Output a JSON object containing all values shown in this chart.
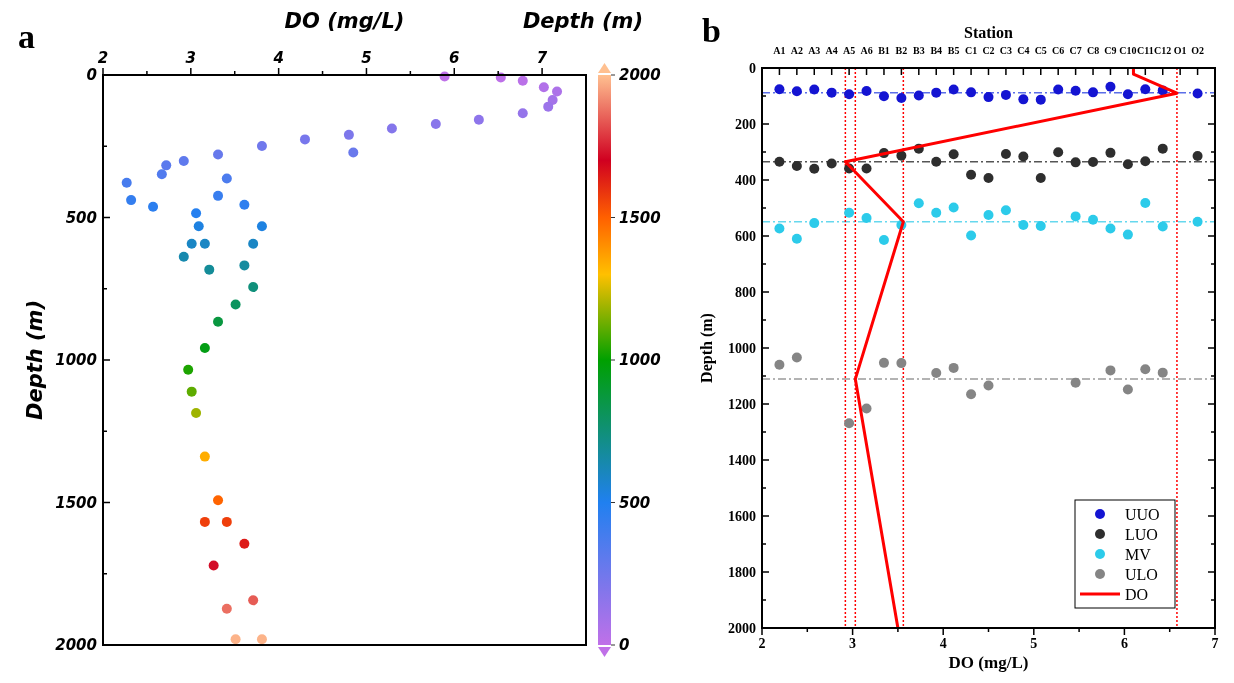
{
  "chart_data": [
    {
      "type": "scatter",
      "xlabel": "DO (mg/L)",
      "ylabel": "Depth (m)",
      "clabel": "Depth (m)",
      "annotations": [
        "a"
      ],
      "marker": "circle",
      "legend": false,
      "grid": false,
      "xlim": [
        2,
        7.5
      ],
      "xticks": [
        2,
        {
          "value": 2.5,
          "label": null
        },
        3,
        {
          "value": 3.5,
          "label": null
        },
        4,
        {
          "value": 4.5,
          "label": null
        },
        5,
        {
          "value": 5.5,
          "label": null
        },
        6,
        {
          "value": 6.5,
          "label": null
        },
        7
      ],
      "ylim": [
        2000,
        0
      ],
      "yticks": [
        0,
        {
          "value": 250,
          "label": null
        },
        500,
        {
          "value": 750,
          "label": null
        },
        1000,
        {
          "value": 1250,
          "label": null
        },
        1500,
        {
          "value": 1750,
          "label": null
        },
        2000
      ],
      "clim": [
        0,
        2000
      ],
      "cticks": [
        0,
        500,
        1000,
        1500,
        2000
      ],
      "series": [
        {
          "x": [
            5.89,
            6.53,
            6.78,
            7.02,
            7.17,
            7.12,
            7.07,
            6.78,
            6.28,
            5.79,
            5.29,
            4.8,
            4.3,
            3.81,
            3.31,
            2.92,
            2.72,
            2.67,
            2.27,
            2.32,
            2.57,
            3.06,
            3.31,
            3.41,
            3.61,
            3.81,
            3.71,
            3.61,
            3.71,
            3.51,
            3.31,
            3.16,
            2.97,
            3.01,
            3.06,
            3.16,
            3.31,
            3.41,
            3.16,
            3.26,
            3.41,
            3.51,
            3.61,
            3.71,
            3.81,
            3.01,
            3.16,
            2.92,
            3.21,
            3.09,
            4.85
          ],
          "values": [
            5,
            9,
            20,
            43,
            58,
            88,
            111,
            134,
            157,
            172,
            188,
            210,
            226,
            249,
            279,
            302,
            317,
            348,
            378,
            439,
            462,
            485,
            424,
            363,
            455,
            531,
            592,
            668,
            744,
            805,
            866,
            958,
            1034,
            1111,
            1186,
            1339,
            1492,
            1568,
            1568,
            1721,
            1873,
            1980,
            1645,
            1843,
            1980,
            592,
            592,
            638,
            683,
            531,
            272
          ],
          "cvalues": [
            5,
            9,
            20,
            43,
            58,
            88,
            111,
            134,
            157,
            172,
            188,
            210,
            226,
            249,
            279,
            302,
            317,
            348,
            378,
            439,
            462,
            485,
            424,
            363,
            455,
            531,
            592,
            668,
            744,
            805,
            866,
            958,
            1034,
            1111,
            1186,
            1339,
            1492,
            1568,
            1568,
            1721,
            1873,
            1980,
            1645,
            1843,
            1980,
            592,
            592,
            638,
            683,
            531,
            272
          ]
        }
      ]
    },
    {
      "type": "scatter",
      "x2label": "DO (mg/L)",
      "ylabel": "Depth (m)",
      "xlabel": "Station",
      "annotations": [
        "b"
      ],
      "marker": "circle",
      "legend": "bottom right",
      "grid": false,
      "categories": [
        "A1",
        "A2",
        "A3",
        "A4",
        "A5",
        "A6",
        "B1",
        "B2",
        "B3",
        "B4",
        "B5",
        "C1",
        "C2",
        "C3",
        "C4",
        "C5",
        "C6",
        "C7",
        "C8",
        "C9",
        "C10",
        "C11",
        "C12",
        "O1",
        "O2"
      ],
      "x2lim": [
        2,
        7
      ],
      "x2ticks": [
        2,
        {
          "value": 2.5,
          "label": null
        },
        3,
        {
          "value": 3.5,
          "label": null
        },
        4,
        {
          "value": 4.5,
          "label": null
        },
        5,
        {
          "value": 5.5,
          "label": null
        },
        6,
        {
          "value": 6.5,
          "label": null
        },
        7
      ],
      "ylim": [
        2000,
        0
      ],
      "yticks": [
        0,
        {
          "value": 100,
          "label": null
        },
        200,
        {
          "value": 300,
          "label": null
        },
        400,
        {
          "value": 500,
          "label": null
        },
        600,
        {
          "value": 700,
          "label": null
        },
        800,
        {
          "value": 900,
          "label": null
        },
        1000,
        {
          "value": 1100,
          "label": null
        },
        1200,
        {
          "value": 1300,
          "label": null
        },
        1400,
        {
          "value": 1500,
          "label": null
        },
        1600,
        {
          "value": 1700,
          "label": null
        },
        1800,
        {
          "value": 1900,
          "label": null
        },
        2000
      ],
      "series": [
        {
          "name": "UUO",
          "color": "#1414d2",
          "values": [
            76,
            83,
            77,
            88,
            94,
            82,
            101,
            107,
            98,
            88,
            77,
            87,
            104,
            96,
            112,
            113,
            77,
            81,
            87,
            67,
            94,
            76,
            80,
            null,
            91
          ]
        },
        {
          "name": "LUO",
          "color": "#2e2e2e",
          "values": [
            335,
            350,
            360,
            341,
            359,
            359,
            304,
            313,
            288,
            335,
            308,
            381,
            393,
            307,
            316,
            393,
            301,
            337,
            336,
            303,
            344,
            333,
            288,
            null,
            314
          ]
        },
        {
          "name": "MV",
          "color": "#2ccbea",
          "values": [
            573,
            610,
            554,
            null,
            517,
            536,
            614,
            561,
            483,
            517,
            498,
            598,
            525,
            508,
            561,
            564,
            null,
            530,
            542,
            573,
            595,
            482,
            566,
            null,
            549
          ]
        },
        {
          "name": "ULO",
          "color": "#858585",
          "values": [
            1060,
            1034,
            null,
            null,
            1269,
            1216,
            1053,
            1054,
            null,
            1089,
            1071,
            1165,
            1134,
            null,
            null,
            null,
            null,
            1124,
            null,
            1080,
            1148,
            1076,
            1088,
            null,
            null
          ]
        },
        {
          "name": "DO",
          "type": "line",
          "marker": "none",
          "color": "#ff0000",
          "axis": "x2",
          "x": [
            6.1,
            6.1,
            6.58,
            2.92,
            3.56,
            3.03,
            3.5
          ],
          "values": [
            0,
            22,
            90,
            335,
            549,
            1111,
            2000
          ]
        }
      ],
      "ref_lines": [
        {
          "axis": "y",
          "value": 88,
          "color": "#5b6ee8",
          "line_style": "dashed"
        },
        {
          "axis": "y",
          "value": 335,
          "color": "#555555",
          "line_style": "dashed"
        },
        {
          "axis": "y",
          "value": 549,
          "color": "#66d8ee",
          "line_style": "dashed"
        },
        {
          "axis": "y",
          "value": 1111,
          "color": "#9a9a9a",
          "line_style": "dashed"
        },
        {
          "axis": "x2",
          "value": 2.92,
          "color": "#ff0000",
          "line_style": "dotted"
        },
        {
          "axis": "x2",
          "value": 3.03,
          "color": "#ff0000",
          "line_style": "dotted"
        },
        {
          "axis": "x2",
          "value": 3.56,
          "color": "#ff0000",
          "line_style": "dotted"
        },
        {
          "axis": "x2",
          "value": 6.58,
          "color": "#ff0000",
          "line_style": "dotted"
        }
      ]
    }
  ]
}
